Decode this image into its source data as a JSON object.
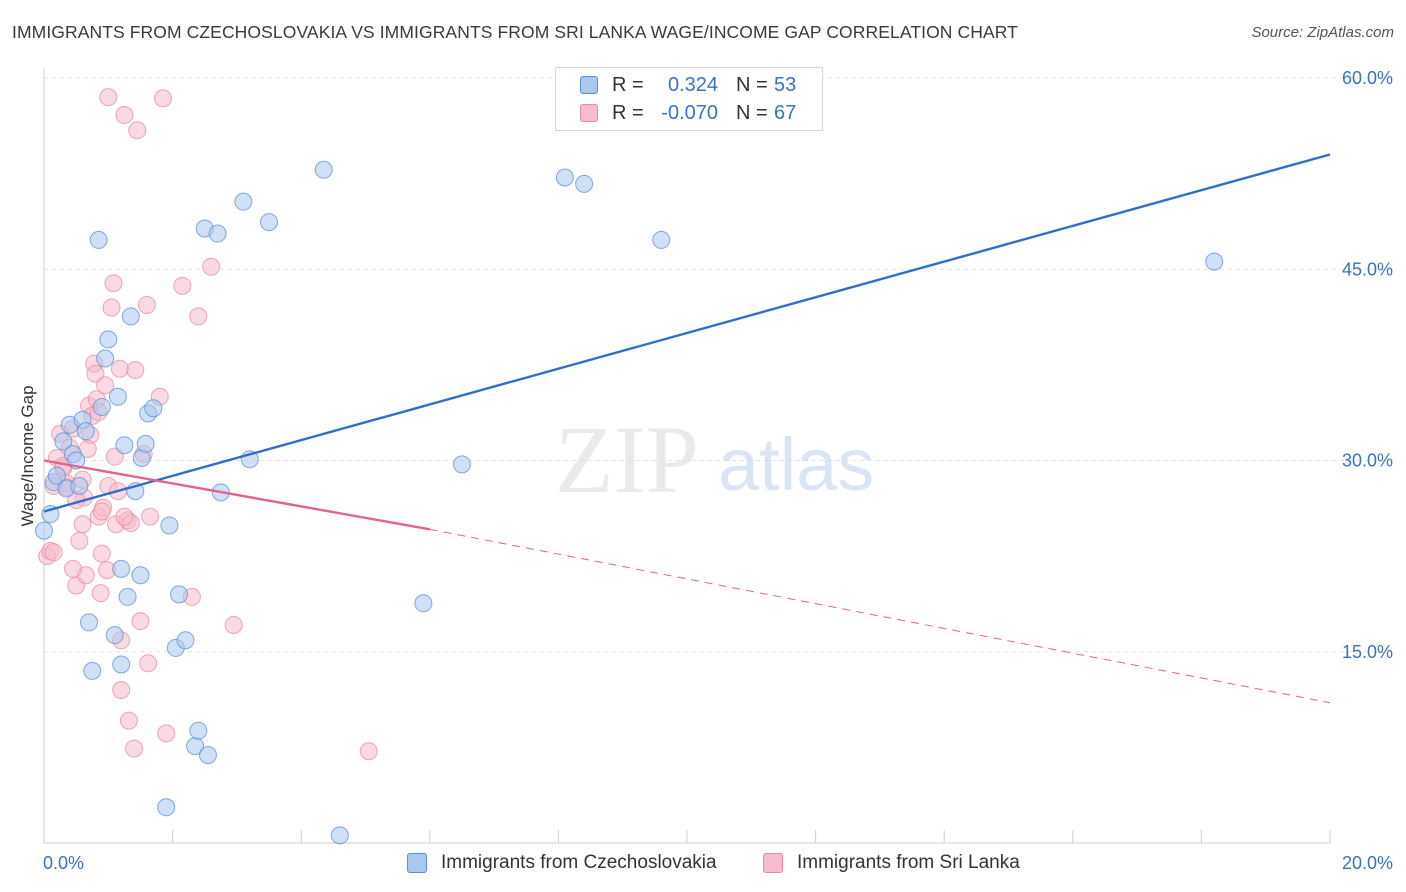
{
  "title": "IMMIGRANTS FROM CZECHOSLOVAKIA VS IMMIGRANTS FROM SRI LANKA WAGE/INCOME GAP CORRELATION CHART",
  "source": "Source: ZipAtlas.com",
  "watermark": {
    "zip": "ZIP",
    "atlas": "atlas"
  },
  "legend": {
    "rows": [
      {
        "r_label": "R =",
        "r_value": "0.324",
        "n_label": "N =",
        "n_value": "53",
        "color": "#a9c7ef",
        "border": "#5b8fd6"
      },
      {
        "r_label": "R =",
        "r_value": "-0.070",
        "n_label": "N =",
        "n_value": "67",
        "color": "#f6bccb",
        "border": "#e889a6"
      }
    ]
  },
  "colors": {
    "blue_fill": "#a9c7ef",
    "blue_line": "#2f6fcc",
    "pink_fill": "#f6bccb",
    "pink_line": "#e0658e",
    "tick_label": "#3a72c4"
  },
  "chart_data": {
    "type": "scatter",
    "title": "IMMIGRANTS FROM CZECHOSLOVAKIA VS IMMIGRANTS FROM SRI LANKA WAGE/INCOME GAP CORRELATION CHART",
    "xlabel": "",
    "ylabel": "Wage/Income Gap",
    "xlim": [
      0,
      20
    ],
    "ylim": [
      0,
      60
    ],
    "x_tick_labels": [
      "0.0%",
      "20.0%"
    ],
    "y_ticks": [
      15,
      30,
      45,
      60
    ],
    "y_tick_labels": [
      "15.0%",
      "30.0%",
      "45.0%",
      "60.0%"
    ],
    "grid": true,
    "legend_position": "bottom",
    "series": [
      {
        "name": "Immigrants from Czechoslovakia",
        "color": "#a9c7ef",
        "points": [
          [
            0.0,
            24.5
          ],
          [
            0.1,
            25.8
          ],
          [
            0.15,
            28.3
          ],
          [
            0.2,
            28.8
          ],
          [
            0.3,
            31.5
          ],
          [
            0.35,
            27.8
          ],
          [
            0.4,
            32.8
          ],
          [
            0.45,
            30.5
          ],
          [
            0.5,
            30.0
          ],
          [
            0.6,
            33.2
          ],
          [
            0.65,
            32.3
          ],
          [
            0.7,
            17.3
          ],
          [
            0.75,
            13.5
          ],
          [
            0.85,
            47.3
          ],
          [
            0.9,
            34.2
          ],
          [
            0.95,
            38.0
          ],
          [
            1.0,
            39.5
          ],
          [
            1.1,
            16.3
          ],
          [
            1.15,
            35.0
          ],
          [
            1.2,
            14.0
          ],
          [
            1.25,
            31.2
          ],
          [
            1.3,
            19.3
          ],
          [
            1.35,
            41.3
          ],
          [
            1.42,
            27.6
          ],
          [
            1.5,
            21.0
          ],
          [
            1.52,
            30.2
          ],
          [
            1.58,
            31.3
          ],
          [
            1.62,
            33.7
          ],
          [
            1.7,
            34.1
          ],
          [
            1.9,
            2.8
          ],
          [
            1.95,
            24.9
          ],
          [
            2.05,
            15.3
          ],
          [
            2.1,
            19.5
          ],
          [
            2.2,
            15.9
          ],
          [
            2.35,
            7.6
          ],
          [
            2.4,
            8.8
          ],
          [
            2.5,
            48.2
          ],
          [
            2.55,
            6.9
          ],
          [
            2.7,
            47.8
          ],
          [
            2.75,
            27.5
          ],
          [
            3.1,
            50.3
          ],
          [
            3.2,
            30.1
          ],
          [
            3.5,
            48.7
          ],
          [
            4.35,
            52.8
          ],
          [
            4.6,
            0.6
          ],
          [
            5.9,
            18.8
          ],
          [
            6.5,
            29.7
          ],
          [
            8.1,
            52.2
          ],
          [
            8.4,
            51.7
          ],
          [
            9.6,
            47.3
          ],
          [
            18.2,
            45.6
          ],
          [
            1.2,
            21.5
          ],
          [
            0.55,
            28.0
          ]
        ]
      },
      {
        "name": "Immigrants from Sri Lanka",
        "color": "#f6bccb",
        "points": [
          [
            0.05,
            22.5
          ],
          [
            0.1,
            22.9
          ],
          [
            0.15,
            28.0
          ],
          [
            0.2,
            30.2
          ],
          [
            0.25,
            32.1
          ],
          [
            0.3,
            29.4
          ],
          [
            0.35,
            28.2
          ],
          [
            0.4,
            31.0
          ],
          [
            0.45,
            32.5
          ],
          [
            0.5,
            20.2
          ],
          [
            0.55,
            23.7
          ],
          [
            0.6,
            25.0
          ],
          [
            0.62,
            27.1
          ],
          [
            0.65,
            21.0
          ],
          [
            0.7,
            34.3
          ],
          [
            0.72,
            32.0
          ],
          [
            0.75,
            33.5
          ],
          [
            0.78,
            37.6
          ],
          [
            0.8,
            36.8
          ],
          [
            0.82,
            34.8
          ],
          [
            0.85,
            25.6
          ],
          [
            0.88,
            19.6
          ],
          [
            0.9,
            22.7
          ],
          [
            0.92,
            26.3
          ],
          [
            0.95,
            35.9
          ],
          [
            0.98,
            21.4
          ],
          [
            1.0,
            28.0
          ],
          [
            1.05,
            42.0
          ],
          [
            1.08,
            43.9
          ],
          [
            1.1,
            30.3
          ],
          [
            1.12,
            25.0
          ],
          [
            1.15,
            27.6
          ],
          [
            1.18,
            37.2
          ],
          [
            1.2,
            12.0
          ],
          [
            1.25,
            57.1
          ],
          [
            1.3,
            25.3
          ],
          [
            1.32,
            9.6
          ],
          [
            1.35,
            25.1
          ],
          [
            1.4,
            7.4
          ],
          [
            1.42,
            37.1
          ],
          [
            1.45,
            55.9
          ],
          [
            1.5,
            17.4
          ],
          [
            1.55,
            30.5
          ],
          [
            1.6,
            42.2
          ],
          [
            1.62,
            14.1
          ],
          [
            1.65,
            25.6
          ],
          [
            1.8,
            35.0
          ],
          [
            1.85,
            58.4
          ],
          [
            1.9,
            8.6
          ],
          [
            2.15,
            43.7
          ],
          [
            2.3,
            19.3
          ],
          [
            2.4,
            41.3
          ],
          [
            2.6,
            45.2
          ],
          [
            2.95,
            17.1
          ],
          [
            5.05,
            7.2
          ],
          [
            0.3,
            29.6
          ],
          [
            0.45,
            21.5
          ],
          [
            1.2,
            15.9
          ],
          [
            0.15,
            22.8
          ],
          [
            0.35,
            27.9
          ],
          [
            0.68,
            30.9
          ],
          [
            0.5,
            26.9
          ],
          [
            1.0,
            58.5
          ],
          [
            0.85,
            33.8
          ],
          [
            1.25,
            25.6
          ],
          [
            0.9,
            26.0
          ],
          [
            0.6,
            28.5
          ]
        ]
      }
    ],
    "trend_lines": [
      {
        "series": "Immigrants from Czechoslovakia",
        "x": [
          0,
          20
        ],
        "y": [
          26.0,
          54.0
        ],
        "style": "solid"
      },
      {
        "series": "Immigrants from Sri Lanka",
        "x": [
          0,
          6
        ],
        "y": [
          30.0,
          24.6
        ],
        "style": "solid"
      },
      {
        "series": "Immigrants from Sri Lanka",
        "x": [
          6,
          20
        ],
        "y": [
          24.6,
          11.0
        ],
        "style": "dashed"
      }
    ]
  }
}
